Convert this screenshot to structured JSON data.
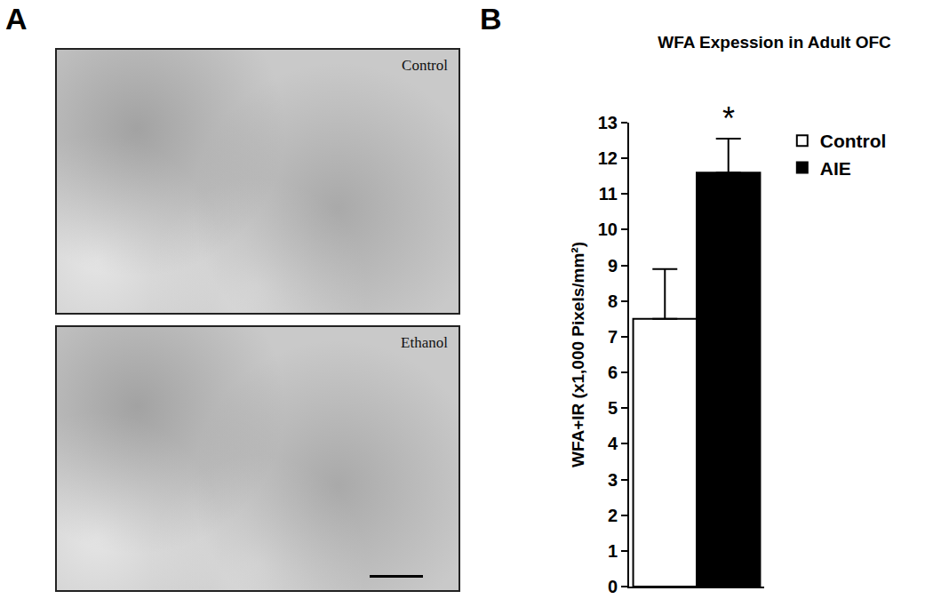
{
  "panels": {
    "A": {
      "label": "A",
      "images": [
        {
          "label": "Control"
        },
        {
          "label": "Ethanol"
        }
      ]
    },
    "B": {
      "label": "B"
    }
  },
  "chart_data": {
    "type": "bar",
    "title": "WFA Expession in Adult OFC",
    "y_label": "WFA+IR (x1,000 Pixels/mm²)",
    "categories": [
      null
    ],
    "series": [
      {
        "name": "Control",
        "color": "#ffffff",
        "values": [
          7.5
        ],
        "errors": [
          1.4
        ]
      },
      {
        "name": "AIE",
        "color": "#000000",
        "values": [
          11.6
        ],
        "errors": [
          0.95
        ]
      }
    ],
    "ylim": [
      0,
      13
    ],
    "yticks": [
      0,
      1,
      2,
      3,
      4,
      5,
      6,
      7,
      8,
      9,
      10,
      11,
      12,
      13
    ],
    "grid": false,
    "legend": "upper right",
    "tick_labels": "y",
    "annotations": [
      {
        "text": "*",
        "series": "AIE"
      }
    ]
  }
}
